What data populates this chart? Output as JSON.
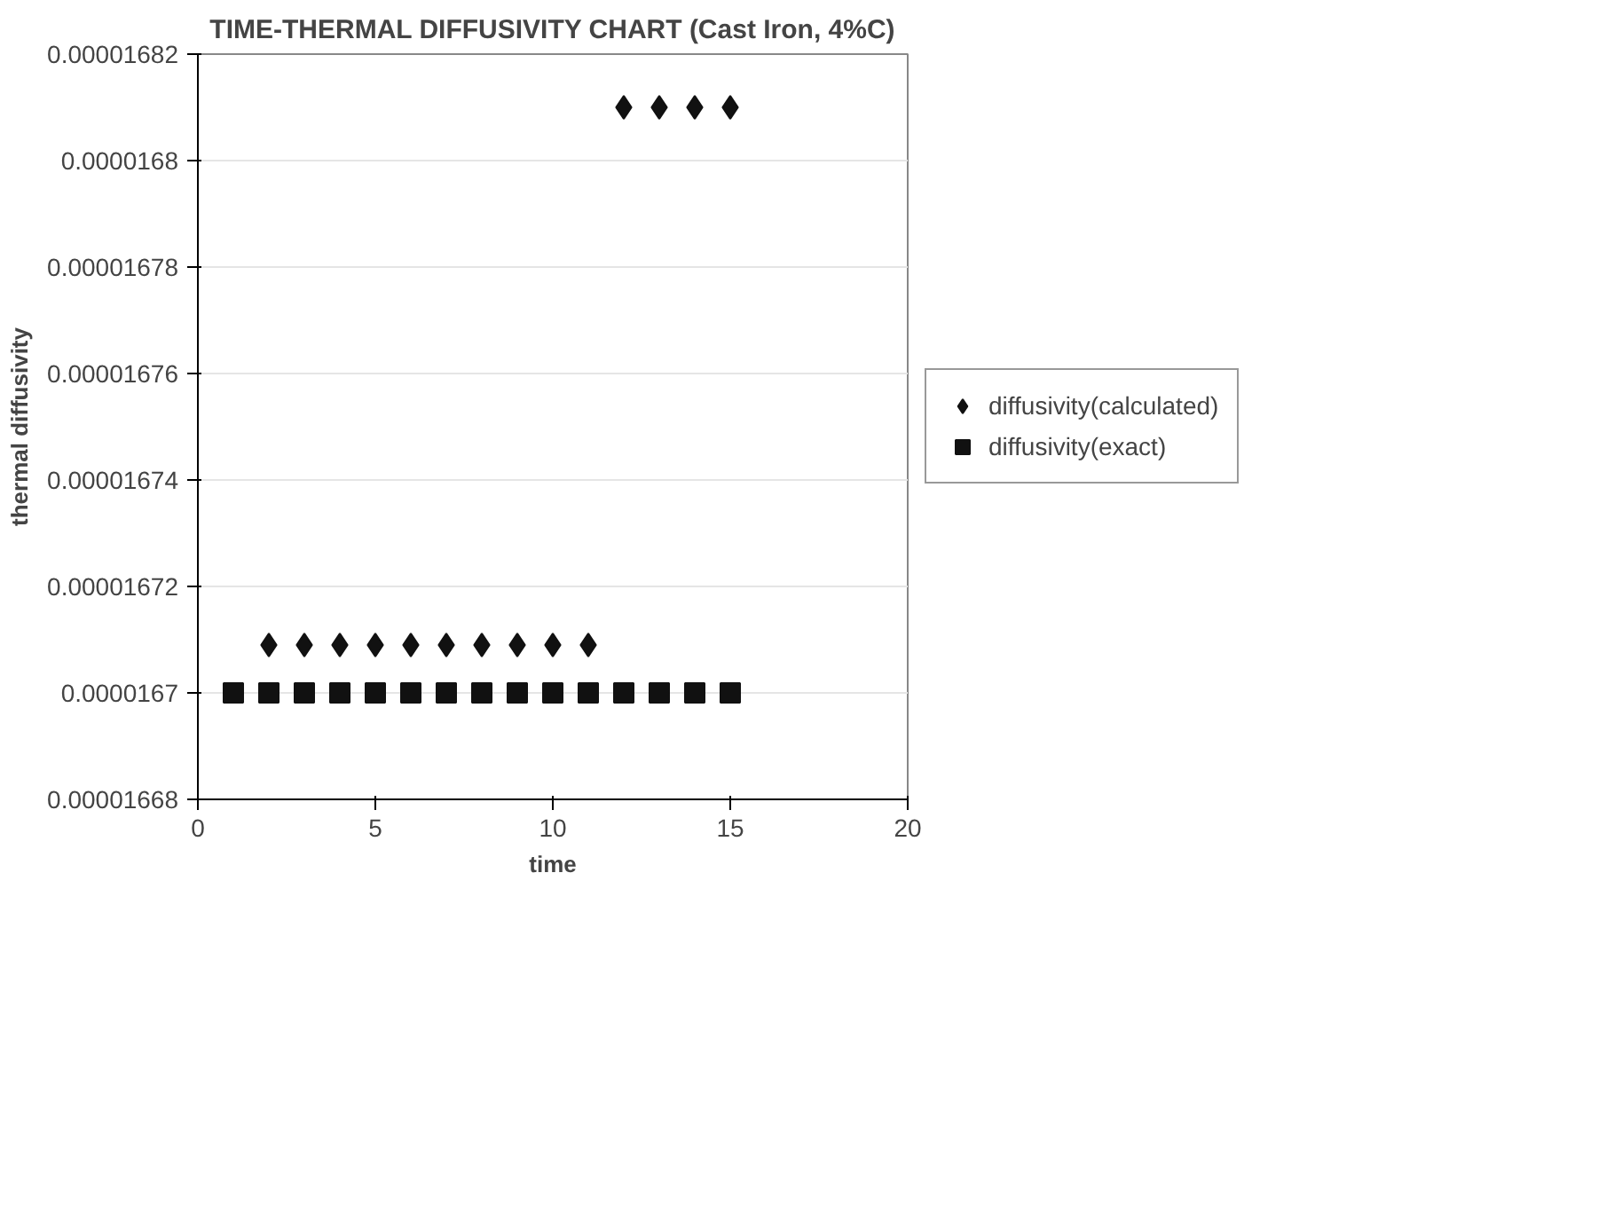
{
  "chart_data": {
    "type": "scatter",
    "title": "TIME-THERMAL DIFFUSIVITY CHART (Cast Iron, 4%C)",
    "xlabel": "time",
    "ylabel": "thermal diffusivity",
    "series": [
      {
        "name": "diffusivity(calculated)",
        "color": "#111111",
        "marker": "diamond",
        "x": [
          2,
          3,
          4,
          5,
          6,
          7,
          8,
          9,
          10,
          11,
          12,
          13,
          14,
          15
        ],
        "values": [
          1.6709e-05,
          1.6709e-05,
          1.6709e-05,
          1.6709e-05,
          1.6709e-05,
          1.6709e-05,
          1.6709e-05,
          1.6709e-05,
          1.6709e-05,
          1.6709e-05,
          1.681e-05,
          1.681e-05,
          1.681e-05,
          1.681e-05
        ]
      },
      {
        "name": "diffusivity(exact)",
        "color": "#111111",
        "marker": "square",
        "x": [
          1,
          2,
          3,
          4,
          5,
          6,
          7,
          8,
          9,
          10,
          11,
          12,
          13,
          14,
          15
        ],
        "values": [
          1.67e-05,
          1.67e-05,
          1.67e-05,
          1.67e-05,
          1.67e-05,
          1.67e-05,
          1.67e-05,
          1.67e-05,
          1.67e-05,
          1.67e-05,
          1.67e-05,
          1.67e-05,
          1.67e-05,
          1.67e-05,
          1.67e-05
        ]
      }
    ],
    "xlim": [
      0,
      20
    ],
    "xticks": [
      0,
      5,
      10,
      15,
      20
    ],
    "ylim": [
      1.668e-05,
      1.682e-05
    ],
    "yticks": [
      {
        "value": 1.668e-05,
        "label": "0.00001668"
      },
      {
        "value": 1.67e-05,
        "label": "0.0000167"
      },
      {
        "value": 1.672e-05,
        "label": "0.00001672"
      },
      {
        "value": 1.674e-05,
        "label": "0.00001674"
      },
      {
        "value": 1.676e-05,
        "label": "0.00001676"
      },
      {
        "value": 1.678e-05,
        "label": "0.00001678"
      },
      {
        "value": 1.68e-05,
        "label": "0.0000168"
      },
      {
        "value": 1.682e-05,
        "label": "0.00001682"
      }
    ],
    "grid": "y",
    "legend": "right"
  }
}
